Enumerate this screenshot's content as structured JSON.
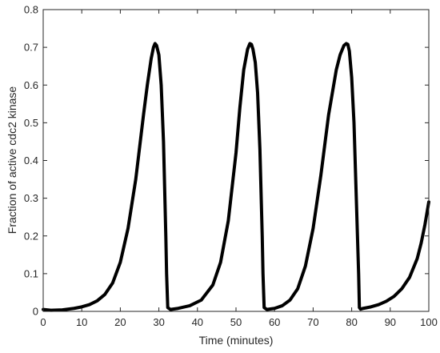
{
  "chart_data": {
    "type": "line",
    "title": "",
    "xlabel": "Time (minutes)",
    "ylabel": "Fraction of active cdc2 kinase",
    "xlim": [
      0,
      100
    ],
    "ylim": [
      0,
      0.8
    ],
    "xticks": [
      0,
      10,
      20,
      30,
      40,
      50,
      60,
      70,
      80,
      90,
      100
    ],
    "yticks": [
      0,
      0.1,
      0.2,
      0.3,
      0.4,
      0.5,
      0.6,
      0.7,
      0.8
    ],
    "xtick_labels": [
      "0",
      "10",
      "20",
      "30",
      "40",
      "50",
      "60",
      "70",
      "80",
      "90",
      "100"
    ],
    "ytick_labels": [
      "0",
      "0.1",
      "0.2",
      "0.3",
      "0.4",
      "0.5",
      "0.6",
      "0.7",
      "0.8"
    ],
    "grid": false,
    "legend": "none",
    "series": [
      {
        "color": "#000000",
        "x": [
          0,
          2,
          5,
          8,
          10,
          12,
          14,
          16,
          18,
          20,
          22,
          24,
          26,
          27,
          28,
          28.6,
          29,
          29.4,
          30,
          30.6,
          31.2,
          31.8,
          32,
          32.3,
          33,
          35,
          38,
          41,
          44,
          46,
          48,
          50,
          51,
          52,
          53,
          53.6,
          54,
          54.4,
          55,
          55.6,
          56.2,
          56.8,
          57,
          57.3,
          58,
          60,
          62,
          64,
          66,
          68,
          70,
          72,
          74,
          76,
          77,
          78,
          78.6,
          79,
          79.4,
          80,
          80.6,
          81.2,
          81.8,
          82,
          82.3,
          83,
          85,
          87,
          89,
          91,
          93,
          95,
          97,
          98,
          99,
          100
        ],
        "y": [
          0.005,
          0.003,
          0.004,
          0.008,
          0.012,
          0.018,
          0.028,
          0.045,
          0.075,
          0.13,
          0.22,
          0.35,
          0.52,
          0.6,
          0.67,
          0.7,
          0.71,
          0.705,
          0.68,
          0.6,
          0.45,
          0.2,
          0.1,
          0.01,
          0.005,
          0.008,
          0.015,
          0.03,
          0.07,
          0.13,
          0.24,
          0.42,
          0.54,
          0.64,
          0.695,
          0.71,
          0.708,
          0.695,
          0.66,
          0.58,
          0.43,
          0.2,
          0.1,
          0.01,
          0.005,
          0.008,
          0.015,
          0.03,
          0.06,
          0.12,
          0.22,
          0.36,
          0.52,
          0.64,
          0.68,
          0.705,
          0.71,
          0.708,
          0.69,
          0.62,
          0.5,
          0.3,
          0.1,
          0.01,
          0.006,
          0.008,
          0.012,
          0.018,
          0.027,
          0.04,
          0.06,
          0.09,
          0.14,
          0.18,
          0.23,
          0.29
        ]
      }
    ]
  }
}
